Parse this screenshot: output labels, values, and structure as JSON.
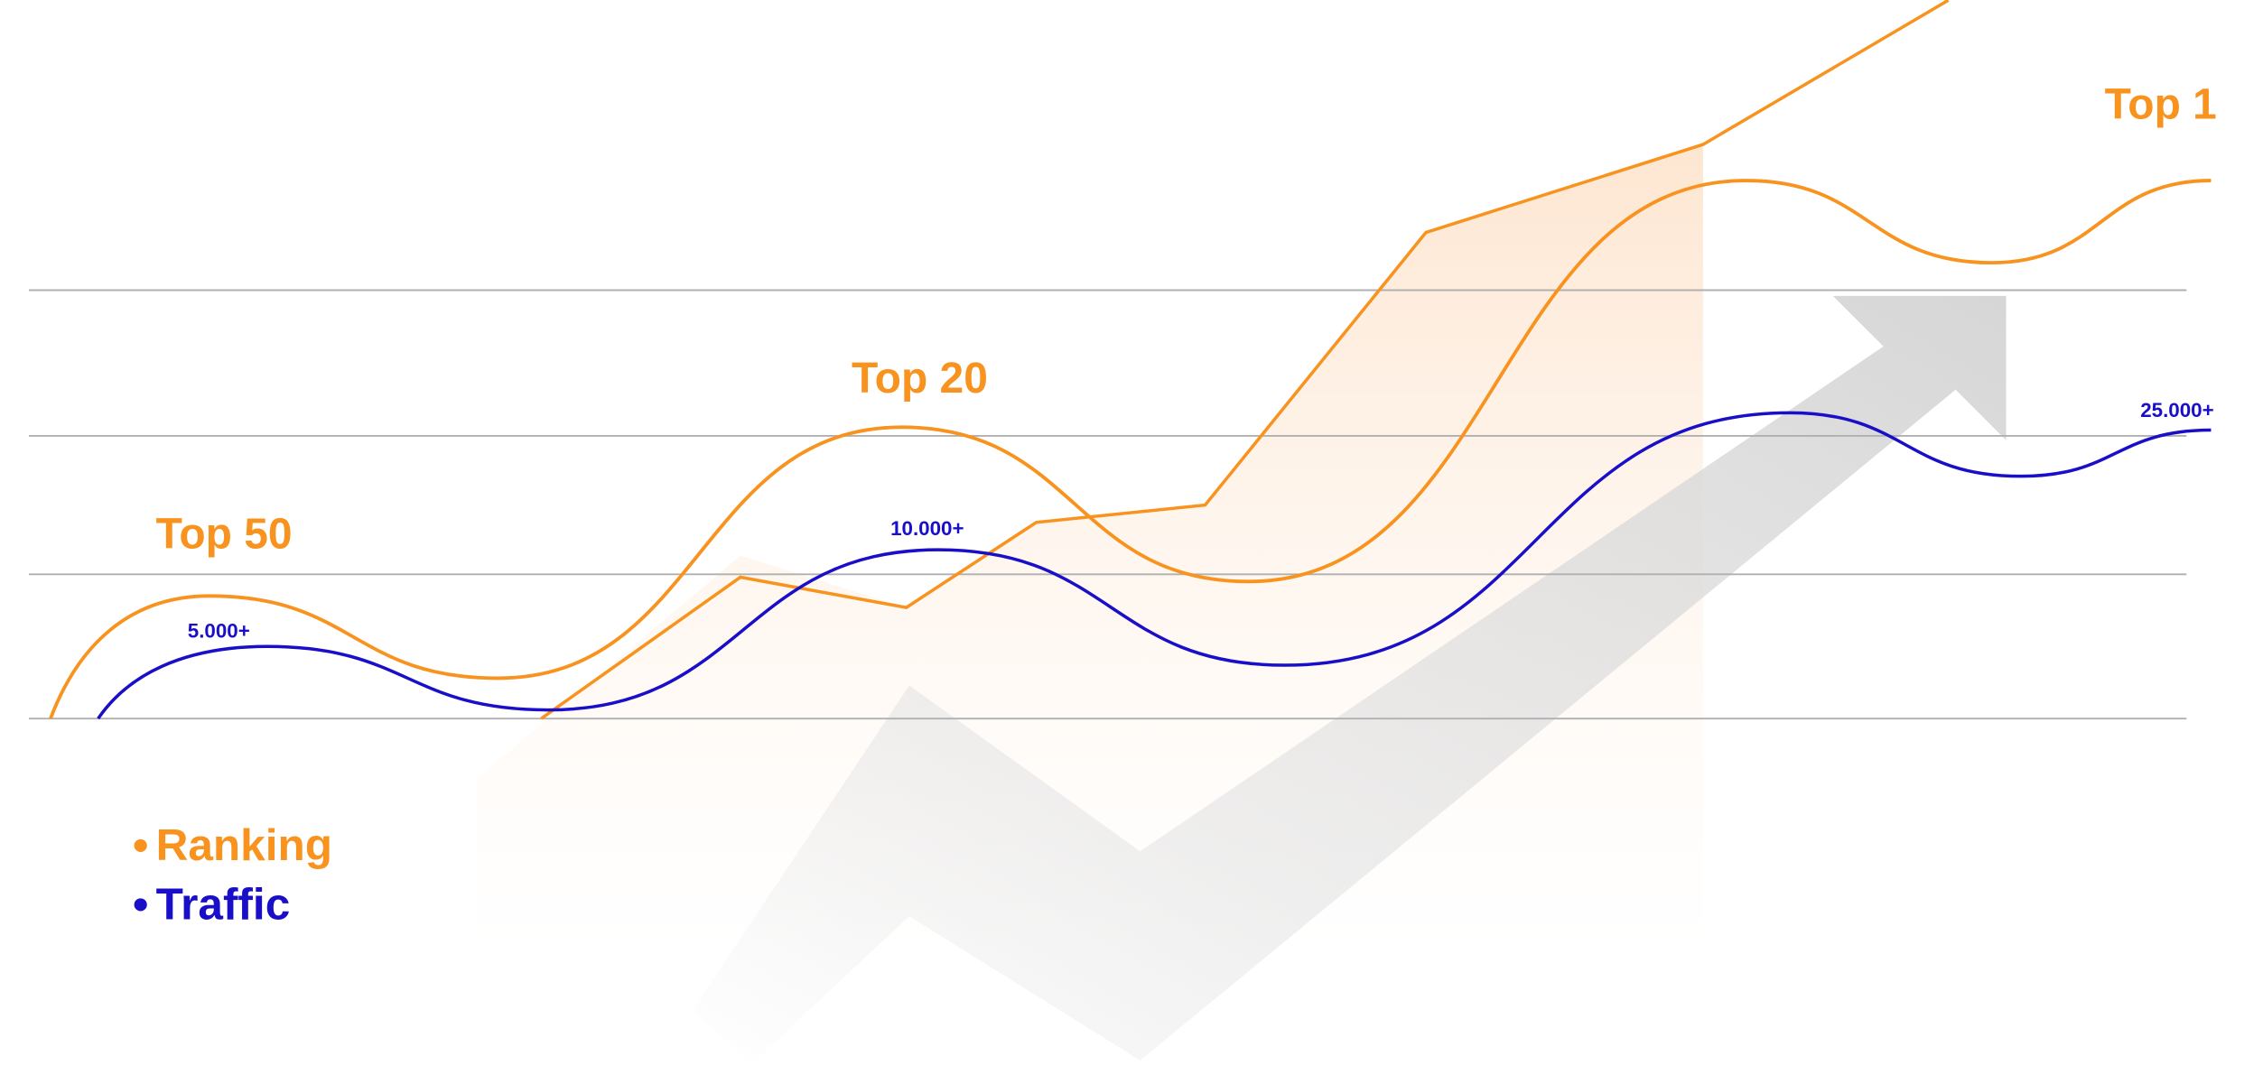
{
  "chart_data": {
    "type": "line",
    "title": "",
    "xlabel": "",
    "ylabel": "",
    "grid": true,
    "legend_placement": "bottom-left",
    "legend": [
      "Ranking",
      "Traffic"
    ],
    "colors": {
      "ranking": "#f7931e",
      "traffic": "#1a0fc8",
      "grid": "#b0b0b0",
      "arrow": "#d9d9d9"
    },
    "series": [
      {
        "name": "Ranking",
        "annotations": [
          "Top 50",
          "Top 20",
          "Top 1"
        ]
      },
      {
        "name": "Traffic",
        "annotations": [
          "5.000+",
          "10.000+",
          "25.000+"
        ]
      }
    ]
  },
  "legend": {
    "ranking": "Ranking",
    "traffic": "Traffic",
    "bullet": "•"
  }
}
